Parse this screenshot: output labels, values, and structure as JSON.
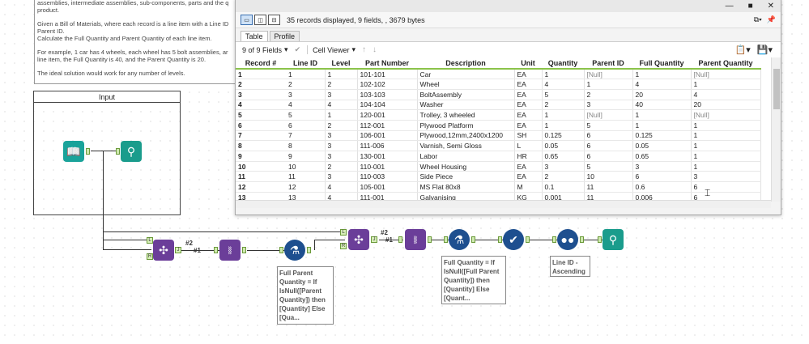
{
  "comment": {
    "para1": "assemblies, intermediate assemblies, sub-components, parts and the q\nproduct.",
    "para2": "Given a Bill of Materials, where each record is a line item with a Line ID\nParent ID.\nCalculate the Full Quantity and Parent Quantity of each line item.",
    "para3": "For example, 1 car has 4 wheels, each wheel has 5 bolt assemblies, ar\nline item, the Full Quantity is 40, and the Parent Quantity is 20.",
    "para4": "The ideal solution would work for any number of levels."
  },
  "container": {
    "title": "Input"
  },
  "workflow": {
    "join_count_1": "#2",
    "join_count_2": "#2",
    "link_num_1": "#1",
    "link_num_2": "#1",
    "formula1_annotation": "Full Parent\nQuantity = If\nIsNull([Parent\nQuantity]) then\n[Quantity] Else\n[Qua...",
    "formula2_annotation": "Full Quantity = If\nIsNull([Full Parent\nQuantity]) then\n[Quantity] Else\n[Quant...",
    "sort_annotation": "Line ID -\nAscending",
    "anchor_L": "L",
    "anchor_R": "R",
    "anchor_J": "J"
  },
  "results": {
    "titlebar": {
      "minimize": "—",
      "maximize": "■",
      "close": "✕"
    },
    "info": "35 records displayed, 9 fields, , 3679 bytes",
    "tabs": [
      "Table",
      "Profile"
    ],
    "fields_dropdown": "9 of 9 Fields",
    "viewer_dropdown": "Cell Viewer",
    "columns": [
      "Record #",
      "Line ID",
      "Level",
      "Part Number",
      "Description",
      "Unit",
      "Quantity",
      "Parent ID",
      "Full Quantity",
      "Parent Quantity"
    ],
    "rows": [
      [
        "1",
        "1",
        "1",
        "101-101",
        "Car",
        "EA",
        "1",
        "[Null]",
        "1",
        "[Null]"
      ],
      [
        "2",
        "2",
        "2",
        "102-102",
        "Wheel",
        "EA",
        "4",
        "1",
        "4",
        "1"
      ],
      [
        "3",
        "3",
        "3",
        "103-103",
        "BoltAssembly",
        "EA",
        "5",
        "2",
        "20",
        "4"
      ],
      [
        "4",
        "4",
        "4",
        "104-104",
        "Washer",
        "EA",
        "2",
        "3",
        "40",
        "20"
      ],
      [
        "5",
        "5",
        "1",
        "120-001",
        "Trolley, 3 wheeled",
        "EA",
        "1",
        "[Null]",
        "1",
        "[Null]"
      ],
      [
        "6",
        "6",
        "2",
        "112-001",
        "Plywood Platform",
        "EA",
        "1",
        "5",
        "1",
        "1"
      ],
      [
        "7",
        "7",
        "3",
        "106-001",
        "Plywood,12mm,2400x1200",
        "SH",
        "0.125",
        "6",
        "0.125",
        "1"
      ],
      [
        "8",
        "8",
        "3",
        "111-006",
        "Varnish, Semi Gloss",
        "L",
        "0.05",
        "6",
        "0.05",
        "1"
      ],
      [
        "9",
        "9",
        "3",
        "130-001",
        "Labor",
        "HR",
        "0.65",
        "6",
        "0.65",
        "1"
      ],
      [
        "10",
        "10",
        "2",
        "110-001",
        "Wheel Housing",
        "EA",
        "3",
        "5",
        "3",
        "1"
      ],
      [
        "11",
        "11",
        "3",
        "110-003",
        "Side Piece",
        "EA",
        "2",
        "10",
        "6",
        "3"
      ],
      [
        "12",
        "12",
        "4",
        "105-001",
        "MS Flat 80x8",
        "M",
        "0.1",
        "11",
        "0.6",
        "6"
      ],
      [
        "13",
        "13",
        "4",
        "111-001",
        "Galvanising",
        "KG",
        "0.001",
        "11",
        "0.006",
        "6"
      ]
    ]
  }
}
